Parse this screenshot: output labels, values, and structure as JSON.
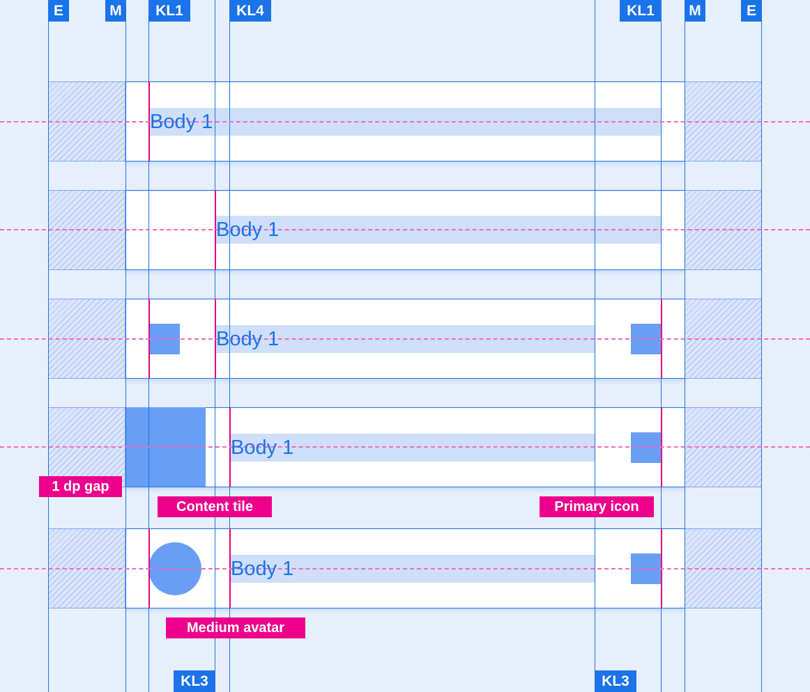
{
  "colors": {
    "keyline": "#1a73e8",
    "annotation": "#ec008c",
    "shape": "#699ef5",
    "text_bar": "#cfdffa",
    "background": "#e8effc"
  },
  "top_labels": [
    "E",
    "M",
    "KL1",
    "KL4",
    "KL1",
    "M",
    "E"
  ],
  "bottom_labels": [
    "KL3",
    "KL3"
  ],
  "rows": [
    {
      "text": "Body 1"
    },
    {
      "text": "Body 1"
    },
    {
      "text": "Body 1"
    },
    {
      "text": "Body 1"
    },
    {
      "text": "Body 1"
    }
  ],
  "annotations": {
    "gap": "1 dp gap",
    "content_tile": "Content tile",
    "primary_icon": "Primary icon",
    "medium_avatar": "Medium avatar"
  }
}
